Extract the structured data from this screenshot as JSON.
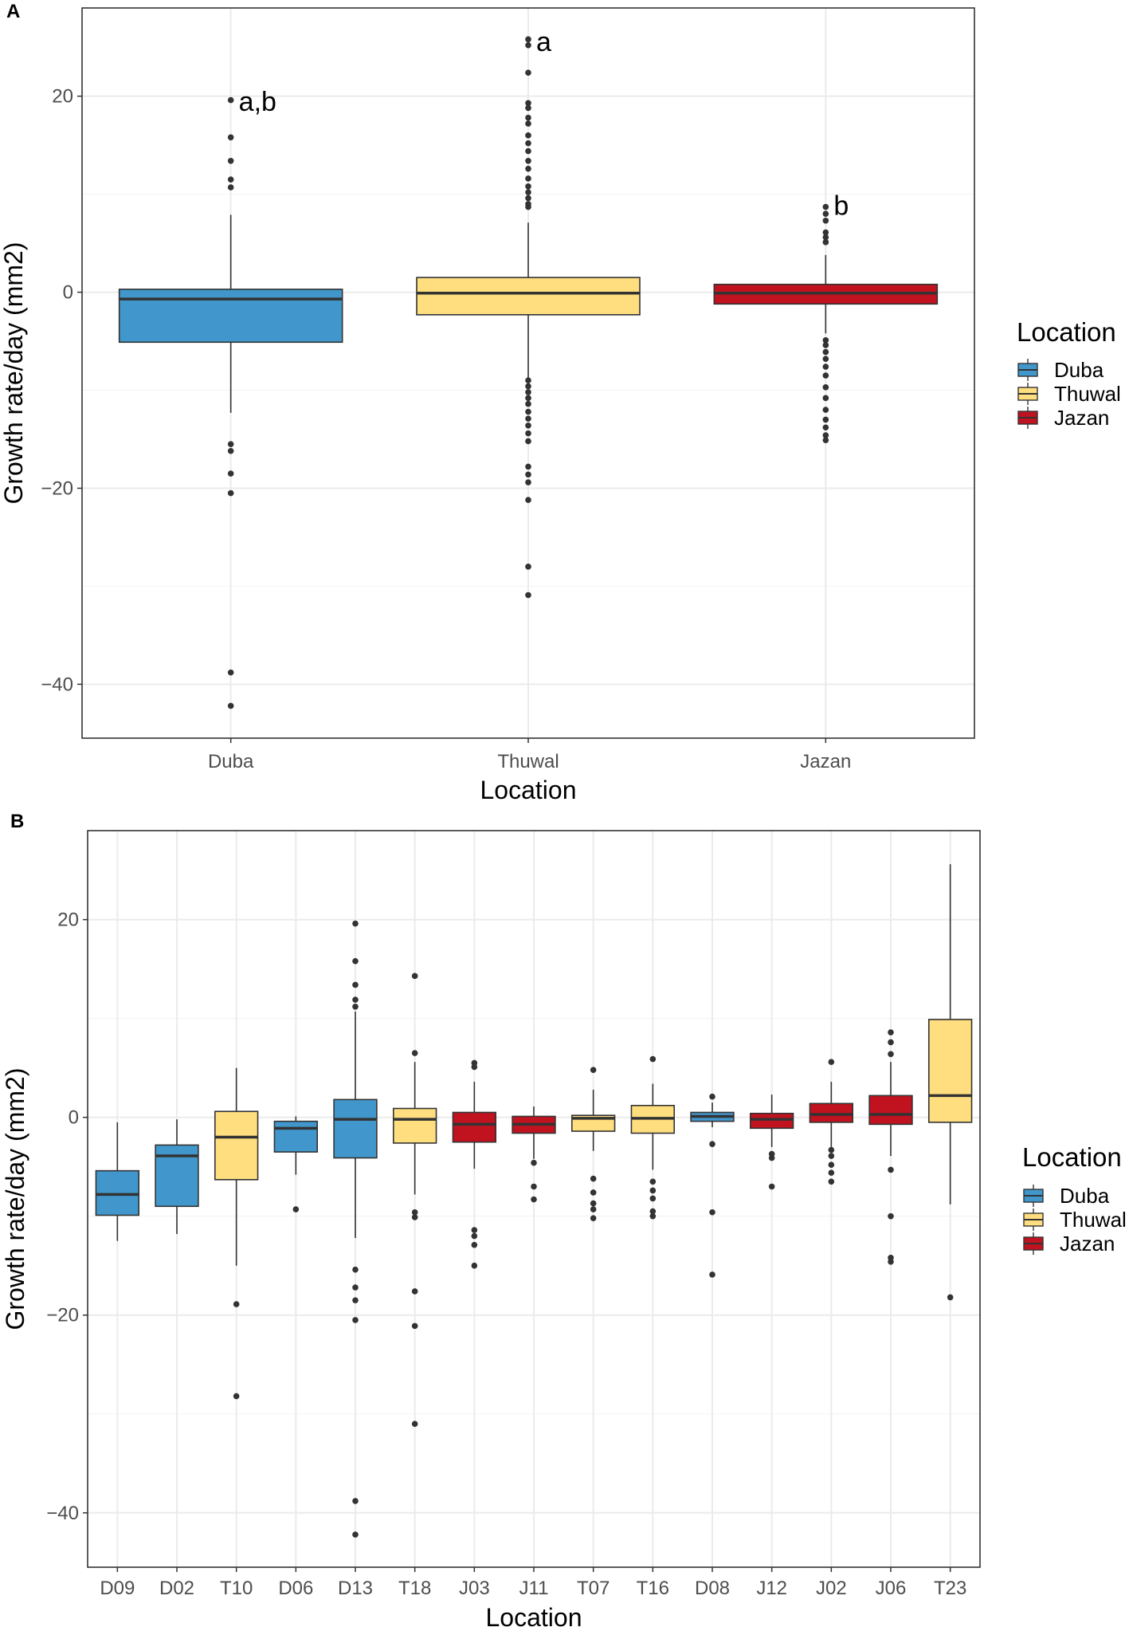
{
  "chart_data": [
    {
      "panel": "A",
      "type": "boxplot",
      "xlabel": "Location",
      "ylabel": "Growth rate/day (mm2)",
      "ylim": [
        -45.5,
        29.0
      ],
      "yticks": [
        -40,
        -20,
        0,
        20
      ],
      "minor_gridlines": [
        -30,
        -10,
        10
      ],
      "grid": true,
      "legend_title": "Location",
      "legend_position": "right",
      "legend": [
        {
          "label": "Duba",
          "color": "#4197cc"
        },
        {
          "label": "Thuwal",
          "color": "#fede7e"
        },
        {
          "label": "Jazan",
          "color": "#c1121f"
        }
      ],
      "categories": [
        "Duba",
        "Thuwal",
        "Jazan"
      ],
      "boxes": [
        {
          "label": "Duba",
          "group": "Duba",
          "q1": -5.1,
          "median": -0.7,
          "q3": 0.3,
          "whisker_low": -12.3,
          "whisker_high": 7.9,
          "outliers": [
            19.6,
            15.8,
            13.4,
            11.5,
            10.7,
            -15.5,
            -16.2,
            -18.5,
            -20.5,
            -38.8,
            -42.2
          ]
        },
        {
          "label": "Thuwal",
          "group": "Thuwal",
          "q1": -2.3,
          "median": -0.1,
          "q3": 1.5,
          "whisker_low": -8.7,
          "whisker_high": 7.1,
          "outliers": [
            25.8,
            25.2,
            22.4,
            19.3,
            18.8,
            17.8,
            17.2,
            16.0,
            15.2,
            14.4,
            13.4,
            12.6,
            11.6,
            10.8,
            10.2,
            9.6,
            9.0,
            8.7,
            -9.0,
            -9.6,
            -10.2,
            -10.8,
            -11.4,
            -12.2,
            -12.9,
            -13.6,
            -14.4,
            -15.2,
            -17.8,
            -18.6,
            -19.4,
            -21.2,
            -28.0,
            -30.9
          ]
        },
        {
          "label": "Jazan",
          "group": "Jazan",
          "q1": -1.2,
          "median": -0.1,
          "q3": 0.8,
          "whisker_low": -4.2,
          "whisker_high": 3.8,
          "outliers": [
            8.7,
            8.0,
            7.3,
            6.1,
            5.6,
            5.1,
            -4.9,
            -5.4,
            -6.1,
            -6.8,
            -7.6,
            -8.5,
            -9.7,
            -10.8,
            -12.0,
            -13.0,
            -13.8,
            -14.6,
            -15.1
          ]
        }
      ],
      "annotations": [
        {
          "text": "a,b",
          "category": "Duba",
          "y": 18.5
        },
        {
          "text": "a",
          "category": "Thuwal",
          "y": 24.6
        },
        {
          "text": "b",
          "category": "Jazan",
          "y": 7.9
        }
      ]
    },
    {
      "panel": "B",
      "type": "boxplot",
      "xlabel": "Location",
      "ylabel": "Growth rate/day (mm2)",
      "ylim": [
        -45.5,
        29.0
      ],
      "yticks": [
        -40,
        -20,
        0,
        20
      ],
      "minor_gridlines": [
        -30,
        -10,
        10
      ],
      "grid": true,
      "legend_title": "Location",
      "legend_position": "right",
      "legend": [
        {
          "label": "Duba",
          "color": "#4197cc"
        },
        {
          "label": "Thuwal",
          "color": "#fede7e"
        },
        {
          "label": "Jazan",
          "color": "#c1121f"
        }
      ],
      "categories": [
        "D09",
        "D02",
        "T10",
        "D06",
        "D13",
        "T18",
        "J03",
        "J11",
        "T07",
        "T16",
        "D08",
        "J12",
        "J02",
        "J06",
        "T23"
      ],
      "boxes": [
        {
          "label": "D09",
          "group": "Duba",
          "q1": -9.9,
          "median": -7.8,
          "q3": -5.4,
          "whisker_low": -12.5,
          "whisker_high": -0.5,
          "outliers": []
        },
        {
          "label": "D02",
          "group": "Duba",
          "q1": -9.0,
          "median": -3.9,
          "q3": -2.8,
          "whisker_low": -11.8,
          "whisker_high": -0.2,
          "outliers": []
        },
        {
          "label": "T10",
          "group": "Thuwal",
          "q1": -6.3,
          "median": -2.0,
          "q3": 0.6,
          "whisker_low": -15.0,
          "whisker_high": 5.0,
          "outliers": [
            -18.9,
            -28.2
          ]
        },
        {
          "label": "D06",
          "group": "Duba",
          "q1": -3.5,
          "median": -1.1,
          "q3": -0.4,
          "whisker_low": -5.8,
          "whisker_high": 0.1,
          "outliers": [
            -9.3
          ]
        },
        {
          "label": "D13",
          "group": "Duba",
          "q1": -4.1,
          "median": -0.2,
          "q3": 1.8,
          "whisker_low": -12.2,
          "whisker_high": 10.7,
          "outliers": [
            19.6,
            15.8,
            13.4,
            11.9,
            11.2,
            -15.4,
            -17.2,
            -18.5,
            -20.5,
            -38.8,
            -42.2
          ]
        },
        {
          "label": "T18",
          "group": "Thuwal",
          "q1": -2.6,
          "median": -0.2,
          "q3": 0.9,
          "whisker_low": -7.8,
          "whisker_high": 5.6,
          "outliers": [
            14.3,
            6.5,
            -9.6,
            -10.1,
            -17.6,
            -21.1,
            -31.0
          ]
        },
        {
          "label": "J03",
          "group": "Jazan",
          "q1": -2.5,
          "median": -0.7,
          "q3": 0.5,
          "whisker_low": -5.2,
          "whisker_high": 3.6,
          "outliers": [
            5.5,
            5.1,
            -11.4,
            -12.0,
            -12.9,
            -15.0
          ]
        },
        {
          "label": "J11",
          "group": "Jazan",
          "q1": -1.6,
          "median": -0.7,
          "q3": 0.1,
          "whisker_low": -4.2,
          "whisker_high": 1.1,
          "outliers": [
            -4.6,
            -7.0,
            -8.3
          ]
        },
        {
          "label": "T07",
          "group": "Thuwal",
          "q1": -1.4,
          "median": -0.1,
          "q3": 0.2,
          "whisker_low": -3.4,
          "whisker_high": 2.8,
          "outliers": [
            4.8,
            -6.2,
            -7.6,
            -8.7,
            -9.3,
            -10.2
          ]
        },
        {
          "label": "T16",
          "group": "Thuwal",
          "q1": -1.6,
          "median": -0.1,
          "q3": 1.2,
          "whisker_low": -5.3,
          "whisker_high": 3.4,
          "outliers": [
            5.9,
            -6.5,
            -7.4,
            -8.2,
            -9.5,
            -10.0
          ]
        },
        {
          "label": "D08",
          "group": "Duba",
          "q1": -0.4,
          "median": 0.1,
          "q3": 0.5,
          "whisker_low": -1.0,
          "whisker_high": 1.5,
          "outliers": [
            2.1,
            -2.7,
            -9.6,
            -15.9
          ]
        },
        {
          "label": "J12",
          "group": "Jazan",
          "q1": -1.1,
          "median": -0.2,
          "q3": 0.4,
          "whisker_low": -3.0,
          "whisker_high": 2.3,
          "outliers": [
            -3.7,
            -4.1,
            -7.0
          ]
        },
        {
          "label": "J02",
          "group": "Jazan",
          "q1": -0.5,
          "median": 0.3,
          "q3": 1.4,
          "whisker_low": -3.0,
          "whisker_high": 3.6,
          "outliers": [
            5.6,
            -3.3,
            -3.9,
            -4.8,
            -5.6,
            -6.5
          ]
        },
        {
          "label": "J06",
          "group": "Jazan",
          "q1": -0.7,
          "median": 0.3,
          "q3": 2.2,
          "whisker_low": -3.9,
          "whisker_high": 5.6,
          "outliers": [
            8.6,
            7.6,
            6.4,
            -5.3,
            -10.0,
            -14.2,
            -14.6
          ]
        },
        {
          "label": "T23",
          "group": "Thuwal",
          "q1": -0.5,
          "median": 2.2,
          "q3": 9.9,
          "whisker_low": -8.8,
          "whisker_high": 25.6,
          "outliers": [
            -18.2
          ]
        }
      ],
      "annotations": []
    }
  ]
}
